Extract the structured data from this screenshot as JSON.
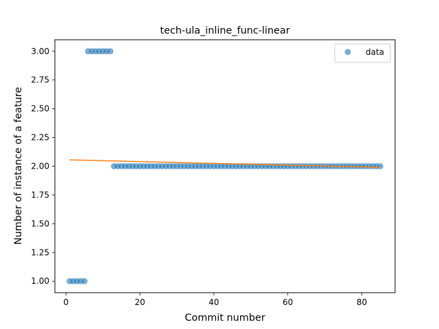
{
  "chart_data": {
    "type": "scatter",
    "title": "tech-ula_inline_func-linear",
    "xlabel": "Commit number",
    "ylabel": "Number of instance of a feature",
    "xlim": [
      -3,
      89
    ],
    "ylim": [
      0.9,
      3.1
    ],
    "x_ticks": [
      0,
      20,
      40,
      60,
      80
    ],
    "x_tick_labels": [
      "0",
      "20",
      "40",
      "60",
      "80"
    ],
    "y_ticks": [
      1.0,
      1.25,
      1.5,
      1.75,
      2.0,
      2.25,
      2.5,
      2.75,
      3.0
    ],
    "y_tick_labels": [
      "1.00",
      "1.25",
      "1.50",
      "1.75",
      "2.00",
      "2.25",
      "2.50",
      "2.75",
      "3.00"
    ],
    "grid": false,
    "legend": {
      "position": "top-right",
      "entries": [
        "data"
      ]
    },
    "series": [
      {
        "name": "data",
        "kind": "scatter",
        "color": "#1f77b4",
        "points": [
          [
            1,
            1
          ],
          [
            2,
            1
          ],
          [
            3,
            1
          ],
          [
            4,
            1
          ],
          [
            5,
            1
          ],
          [
            6,
            3
          ],
          [
            7,
            3
          ],
          [
            8,
            3
          ],
          [
            9,
            3
          ],
          [
            10,
            3
          ],
          [
            11,
            3
          ],
          [
            12,
            3
          ],
          [
            13,
            2
          ],
          [
            14,
            2
          ],
          [
            15,
            2
          ],
          [
            16,
            2
          ],
          [
            17,
            2
          ],
          [
            18,
            2
          ],
          [
            19,
            2
          ],
          [
            20,
            2
          ],
          [
            21,
            2
          ],
          [
            22,
            2
          ],
          [
            23,
            2
          ],
          [
            24,
            2
          ],
          [
            25,
            2
          ],
          [
            26,
            2
          ],
          [
            27,
            2
          ],
          [
            28,
            2
          ],
          [
            29,
            2
          ],
          [
            30,
            2
          ],
          [
            31,
            2
          ],
          [
            32,
            2
          ],
          [
            33,
            2
          ],
          [
            34,
            2
          ],
          [
            35,
            2
          ],
          [
            36,
            2
          ],
          [
            37,
            2
          ],
          [
            38,
            2
          ],
          [
            39,
            2
          ],
          [
            40,
            2
          ],
          [
            41,
            2
          ],
          [
            42,
            2
          ],
          [
            43,
            2
          ],
          [
            44,
            2
          ],
          [
            45,
            2
          ],
          [
            46,
            2
          ],
          [
            47,
            2
          ],
          [
            48,
            2
          ],
          [
            49,
            2
          ],
          [
            50,
            2
          ],
          [
            51,
            2
          ],
          [
            52,
            2
          ],
          [
            53,
            2
          ],
          [
            54,
            2
          ],
          [
            55,
            2
          ],
          [
            56,
            2
          ],
          [
            57,
            2
          ],
          [
            58,
            2
          ],
          [
            59,
            2
          ],
          [
            60,
            2
          ],
          [
            61,
            2
          ],
          [
            62,
            2
          ],
          [
            63,
            2
          ],
          [
            64,
            2
          ],
          [
            65,
            2
          ],
          [
            66,
            2
          ],
          [
            67,
            2
          ],
          [
            68,
            2
          ],
          [
            69,
            2
          ],
          [
            70,
            2
          ],
          [
            71,
            2
          ],
          [
            72,
            2
          ],
          [
            73,
            2
          ],
          [
            74,
            2
          ],
          [
            75,
            2
          ],
          [
            76,
            2
          ],
          [
            77,
            2
          ],
          [
            78,
            2
          ],
          [
            79,
            2
          ],
          [
            80,
            2
          ],
          [
            81,
            2
          ],
          [
            82,
            2
          ],
          [
            83,
            2
          ],
          [
            84,
            2
          ],
          [
            85,
            2
          ]
        ]
      },
      {
        "kind": "line",
        "color": "#ff7f0e",
        "points": [
          [
            1,
            2.055
          ],
          [
            85,
            1.99
          ]
        ]
      }
    ]
  }
}
